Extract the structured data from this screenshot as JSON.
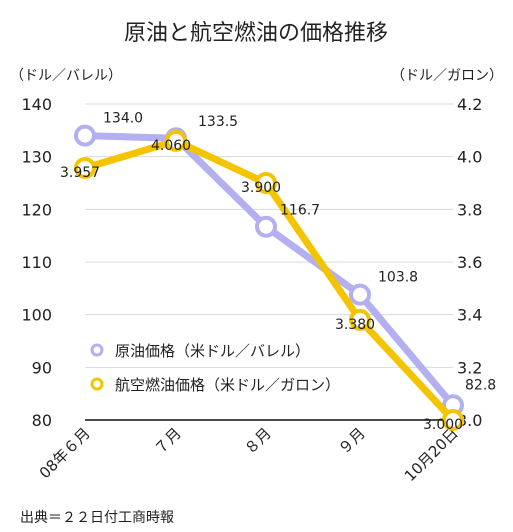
{
  "chart_data": {
    "type": "line",
    "title": "原油と航空燃油の価格推移",
    "left_axis_unit": "（ドル／バレル）",
    "right_axis_unit": "（ドル／ガロン）",
    "categories": [
      "08年６月",
      "７月",
      "８月",
      "９月",
      "10月20日"
    ],
    "left_axis": {
      "ylim": [
        80,
        140
      ],
      "ticks": [
        "80",
        "90",
        "100",
        "110",
        "120",
        "130",
        "140"
      ]
    },
    "right_axis": {
      "ylim": [
        3.0,
        4.2
      ],
      "ticks": [
        "3.0",
        "3.2",
        "3.4",
        "3.6",
        "3.8",
        "4.0",
        "4.2"
      ]
    },
    "grid": true,
    "series": [
      {
        "name": "原油価格（米ドル／バレル）",
        "axis": "left",
        "color": "#b3aff0",
        "values": [
          134.0,
          133.5,
          116.7,
          103.8,
          82.8
        ],
        "labels": [
          "134.0",
          "133.5",
          "116.7",
          "103.8",
          "82.8"
        ]
      },
      {
        "name": "航空燃油価格（米ドル／ガロン）",
        "axis": "right",
        "color": "#f4c400",
        "values": [
          3.957,
          4.06,
          3.9,
          3.38,
          3.0
        ],
        "labels": [
          "3.957",
          "4.060",
          "3.900",
          "3.380",
          "3.000"
        ]
      }
    ],
    "legend_position": "bottom-left",
    "source": "出典＝２２日付工商時報"
  }
}
